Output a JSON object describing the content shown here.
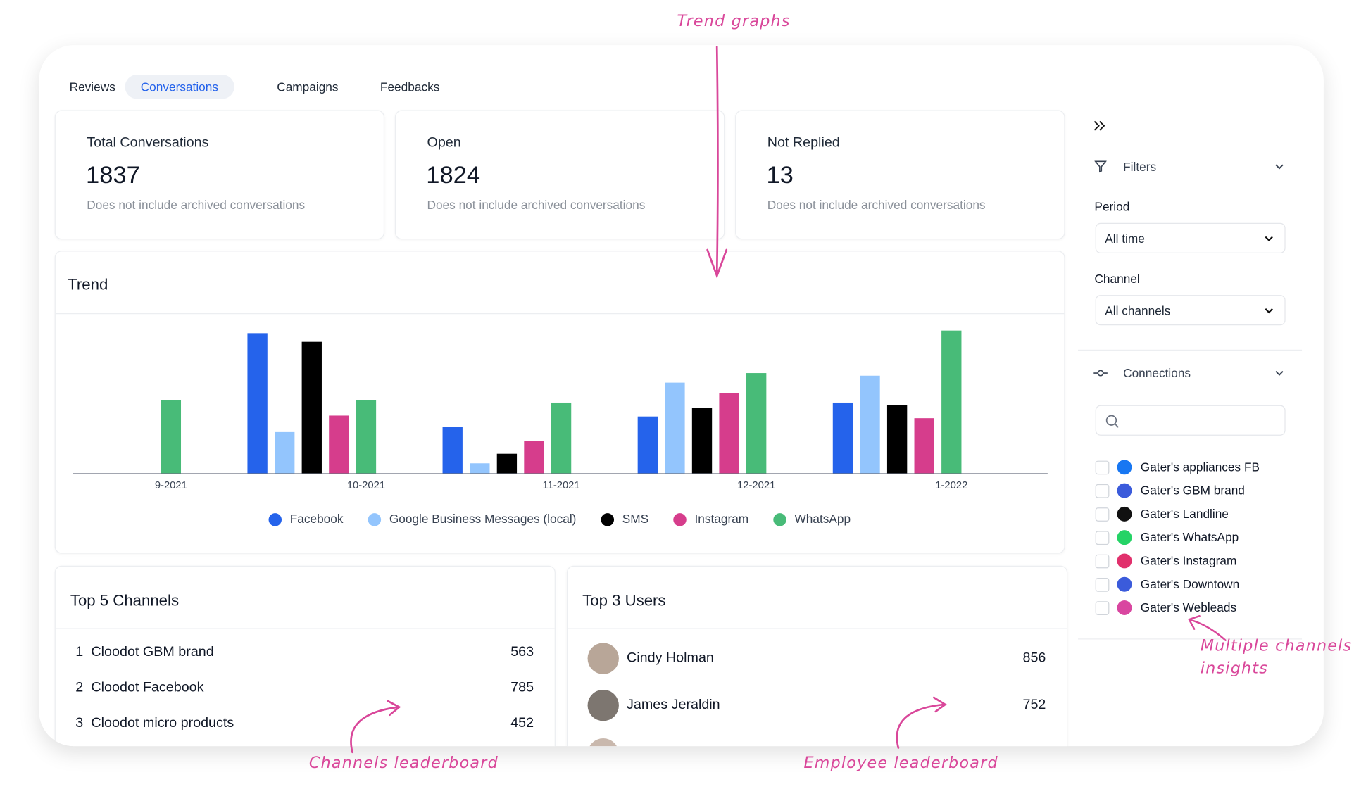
{
  "tabs": [
    "Reviews",
    "Conversations",
    "Campaigns",
    "Feedbacks"
  ],
  "active_tab": 1,
  "stats": [
    {
      "label": "Total Conversations",
      "value": 1837,
      "note": "Does not include archived conversations"
    },
    {
      "label": "Open",
      "value": 1824,
      "note": "Does not include archived conversations"
    },
    {
      "label": "Not Replied",
      "value": 13,
      "note": "Does not include archived conversations"
    }
  ],
  "chart_data": {
    "type": "bar",
    "title": "Trend",
    "categories": [
      "9-2021",
      "10-2021",
      "11-2021",
      "12-2021",
      "1-2022"
    ],
    "series": [
      {
        "name": "Facebook",
        "color": "#2563eb",
        "values": [
          null,
          162,
          54,
          66,
          82
        ]
      },
      {
        "name": "Google Business Messages (local)",
        "color": "#93c5fd",
        "values": [
          null,
          48,
          12,
          105,
          113
        ]
      },
      {
        "name": "SMS",
        "color": "#000000",
        "values": [
          null,
          152,
          23,
          76,
          79
        ]
      },
      {
        "name": "Instagram",
        "color": "#d63d8c",
        "values": [
          null,
          67,
          38,
          93,
          64
        ]
      },
      {
        "name": "WhatsApp",
        "color": "#48bb78",
        "values": [
          85,
          85,
          82,
          116,
          165
        ]
      }
    ]
  },
  "top_channels": {
    "title": "Top 5 Channels",
    "rows": [
      {
        "rank": 1,
        "name": "Cloodot GBM brand",
        "value": 563
      },
      {
        "rank": 2,
        "name": "Cloodot Facebook",
        "value": 785
      },
      {
        "rank": 3,
        "name": "Cloodot micro products",
        "value": 452
      }
    ]
  },
  "top_users": {
    "title": "Top 3 Users",
    "rows": [
      {
        "name": "Cindy Holman",
        "value": 856
      },
      {
        "name": "James Jeraldin",
        "value": 752
      }
    ]
  },
  "sidebar": {
    "filters": "Filters",
    "period_label": "Period",
    "period_value": "All time",
    "channel_label": "Channel",
    "channel_value": "All channels",
    "connections": "Connections",
    "connection_items": [
      "Gater's appliances FB",
      "Gater's GBM brand",
      "Gater's Landline",
      "Gater's WhatsApp",
      "Gater's Instagram",
      "Gater's Downtown",
      "Gater's Webleads"
    ]
  },
  "annotations": {
    "trend": "Trend graphs",
    "insights": [
      "Multiple channels",
      "insights"
    ],
    "channels_leaderboard": "Channels leaderboard",
    "employee_leaderboard": "Employee leaderboard"
  }
}
